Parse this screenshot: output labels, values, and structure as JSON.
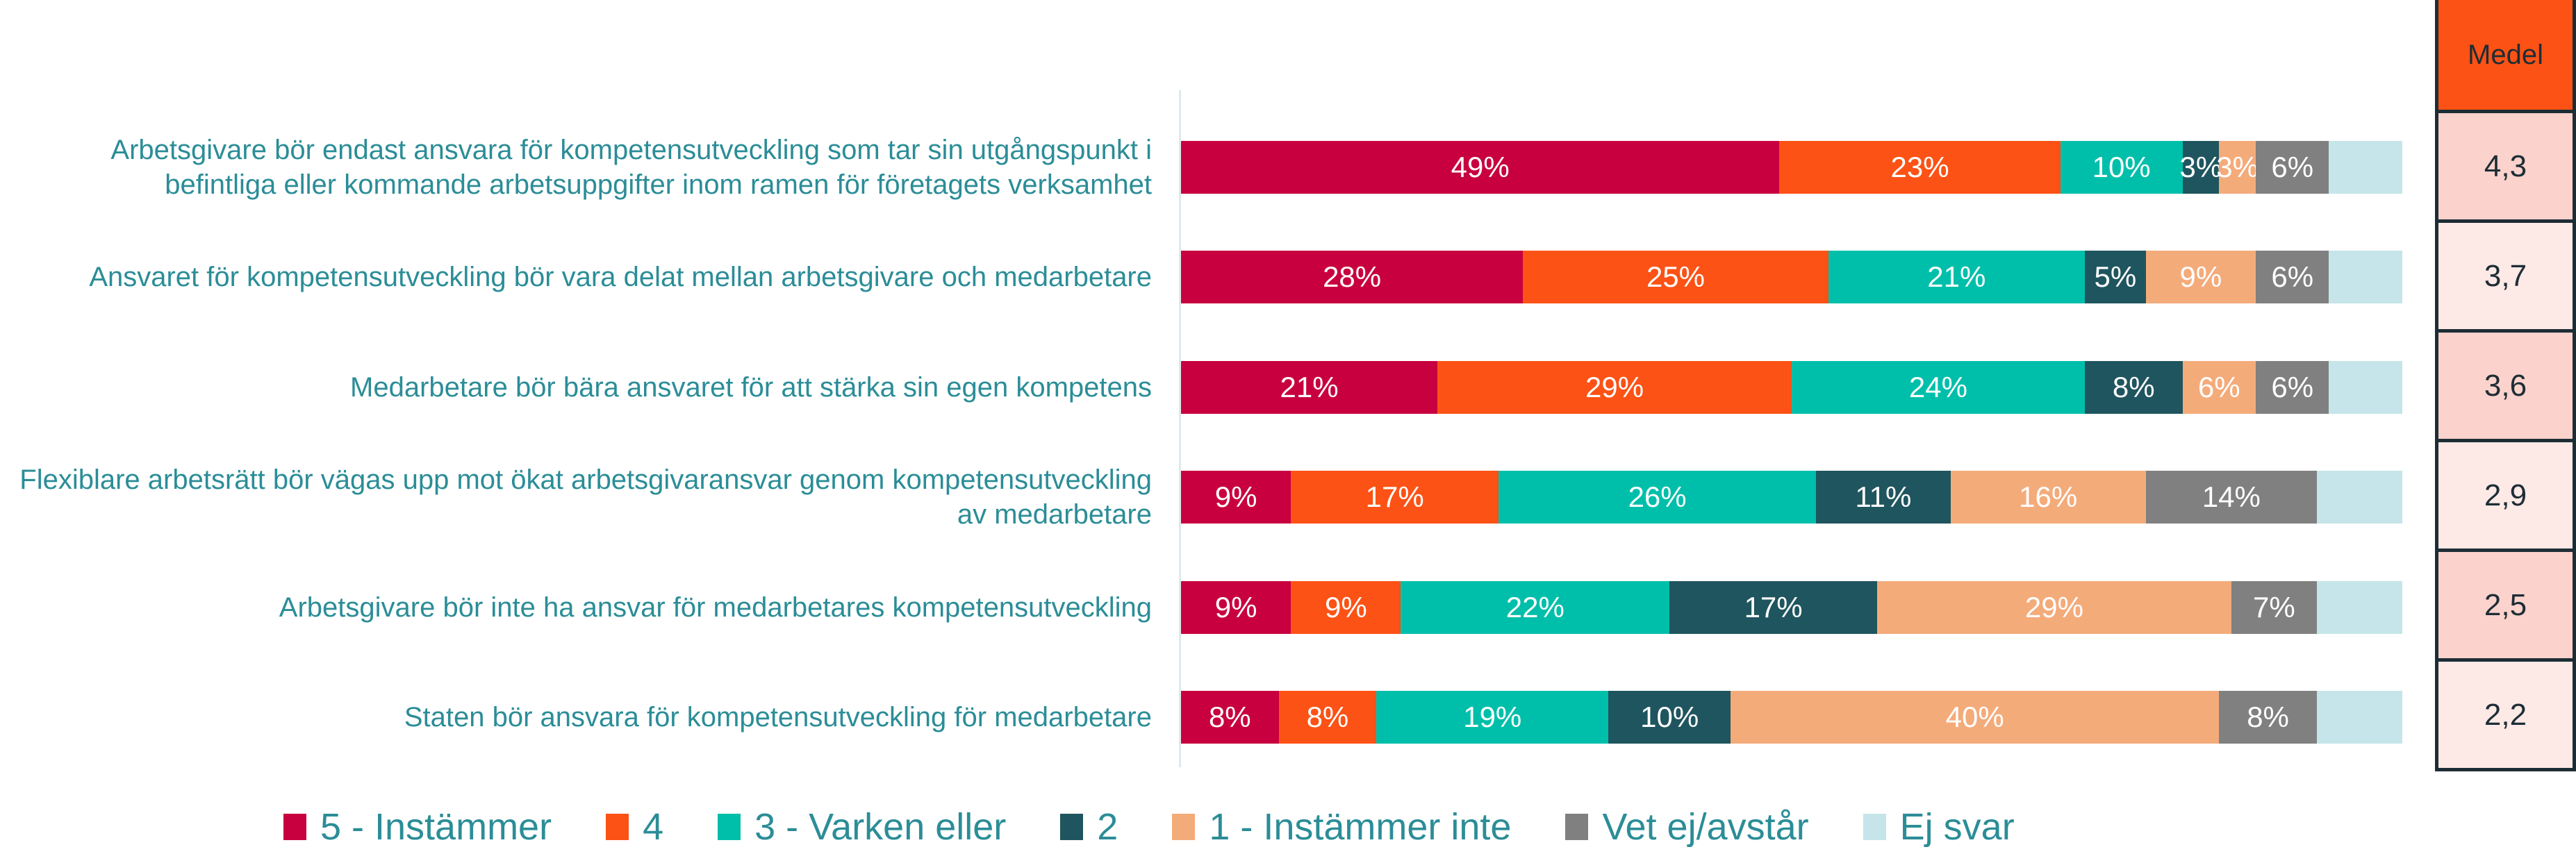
{
  "chart_data": {
    "type": "bar",
    "orientation": "horizontal",
    "stacked": true,
    "percent": true,
    "categories": [
      "Arbetsgivare bör endast ansvara för kompetensutveckling som tar sin utgångspunkt i befintliga eller kommande arbetsuppgifter inom ramen för företagets verksamhet",
      "Ansvaret för kompetensutveckling bör vara delat mellan arbetsgivare och medarbetare",
      "Medarbetare bör bära ansvaret för att stärka sin egen kompetens",
      "Flexiblare arbetsrätt bör vägas upp mot ökat arbetsgivaransvar genom kompetensutveckling av medarbetare",
      "Arbetsgivare bör inte ha ansvar för medarbetares kompetensutveckling",
      "Staten bör ansvara för kompetensutveckling för medarbetare"
    ],
    "series": [
      {
        "name": "5 - Instämmer",
        "color": "#c8003f",
        "values": [
          49,
          28,
          21,
          9,
          9,
          8
        ],
        "labels": [
          "49%",
          "28%",
          "21%",
          "9%",
          "9%",
          "8%"
        ]
      },
      {
        "name": "4",
        "color": "#fc5215",
        "values": [
          23,
          25,
          29,
          17,
          9,
          8
        ],
        "labels": [
          "23%",
          "25%",
          "29%",
          "17%",
          "9%",
          "8%"
        ]
      },
      {
        "name": "3 - Varken eller",
        "color": "#00bfaa",
        "values": [
          10,
          21,
          24,
          26,
          22,
          19
        ],
        "labels": [
          "10%",
          "21%",
          "24%",
          "26%",
          "22%",
          "19%"
        ]
      },
      {
        "name": "2",
        "color": "#1f555e",
        "values": [
          3,
          5,
          8,
          11,
          17,
          10
        ],
        "labels": [
          "3%",
          "5%",
          "8%",
          "11%",
          "17%",
          "10%"
        ]
      },
      {
        "name": "1 - Instämmer inte",
        "color": "#f4ab7a",
        "values": [
          3,
          9,
          6,
          16,
          29,
          40
        ],
        "labels": [
          "3%",
          "9%",
          "6%",
          "16%",
          "29%",
          "40%"
        ]
      },
      {
        "name": "Vet ej/avstår",
        "color": "#808080",
        "values": [
          6,
          6,
          6,
          14,
          7,
          8
        ],
        "labels": [
          "6%",
          "6%",
          "6%",
          "14%",
          "7%",
          "8%"
        ]
      },
      {
        "name": "Ej svar",
        "color": "#c5e5ea",
        "values": [
          6,
          6,
          6,
          7,
          7,
          7
        ],
        "labels": [
          "",
          "",
          "",
          "",
          "",
          ""
        ]
      }
    ],
    "xlim": [
      0,
      100
    ],
    "legend": "bottom",
    "grid": false
  },
  "medel": {
    "header": "Medel",
    "values": [
      "4,3",
      "3,7",
      "3,6",
      "2,9",
      "2,5",
      "2,2"
    ],
    "colors": [
      "#fcd2cc",
      "#fde9e6",
      "#fcd2cc",
      "#fde9e6",
      "#fcd2cc",
      "#fde9e6"
    ]
  }
}
